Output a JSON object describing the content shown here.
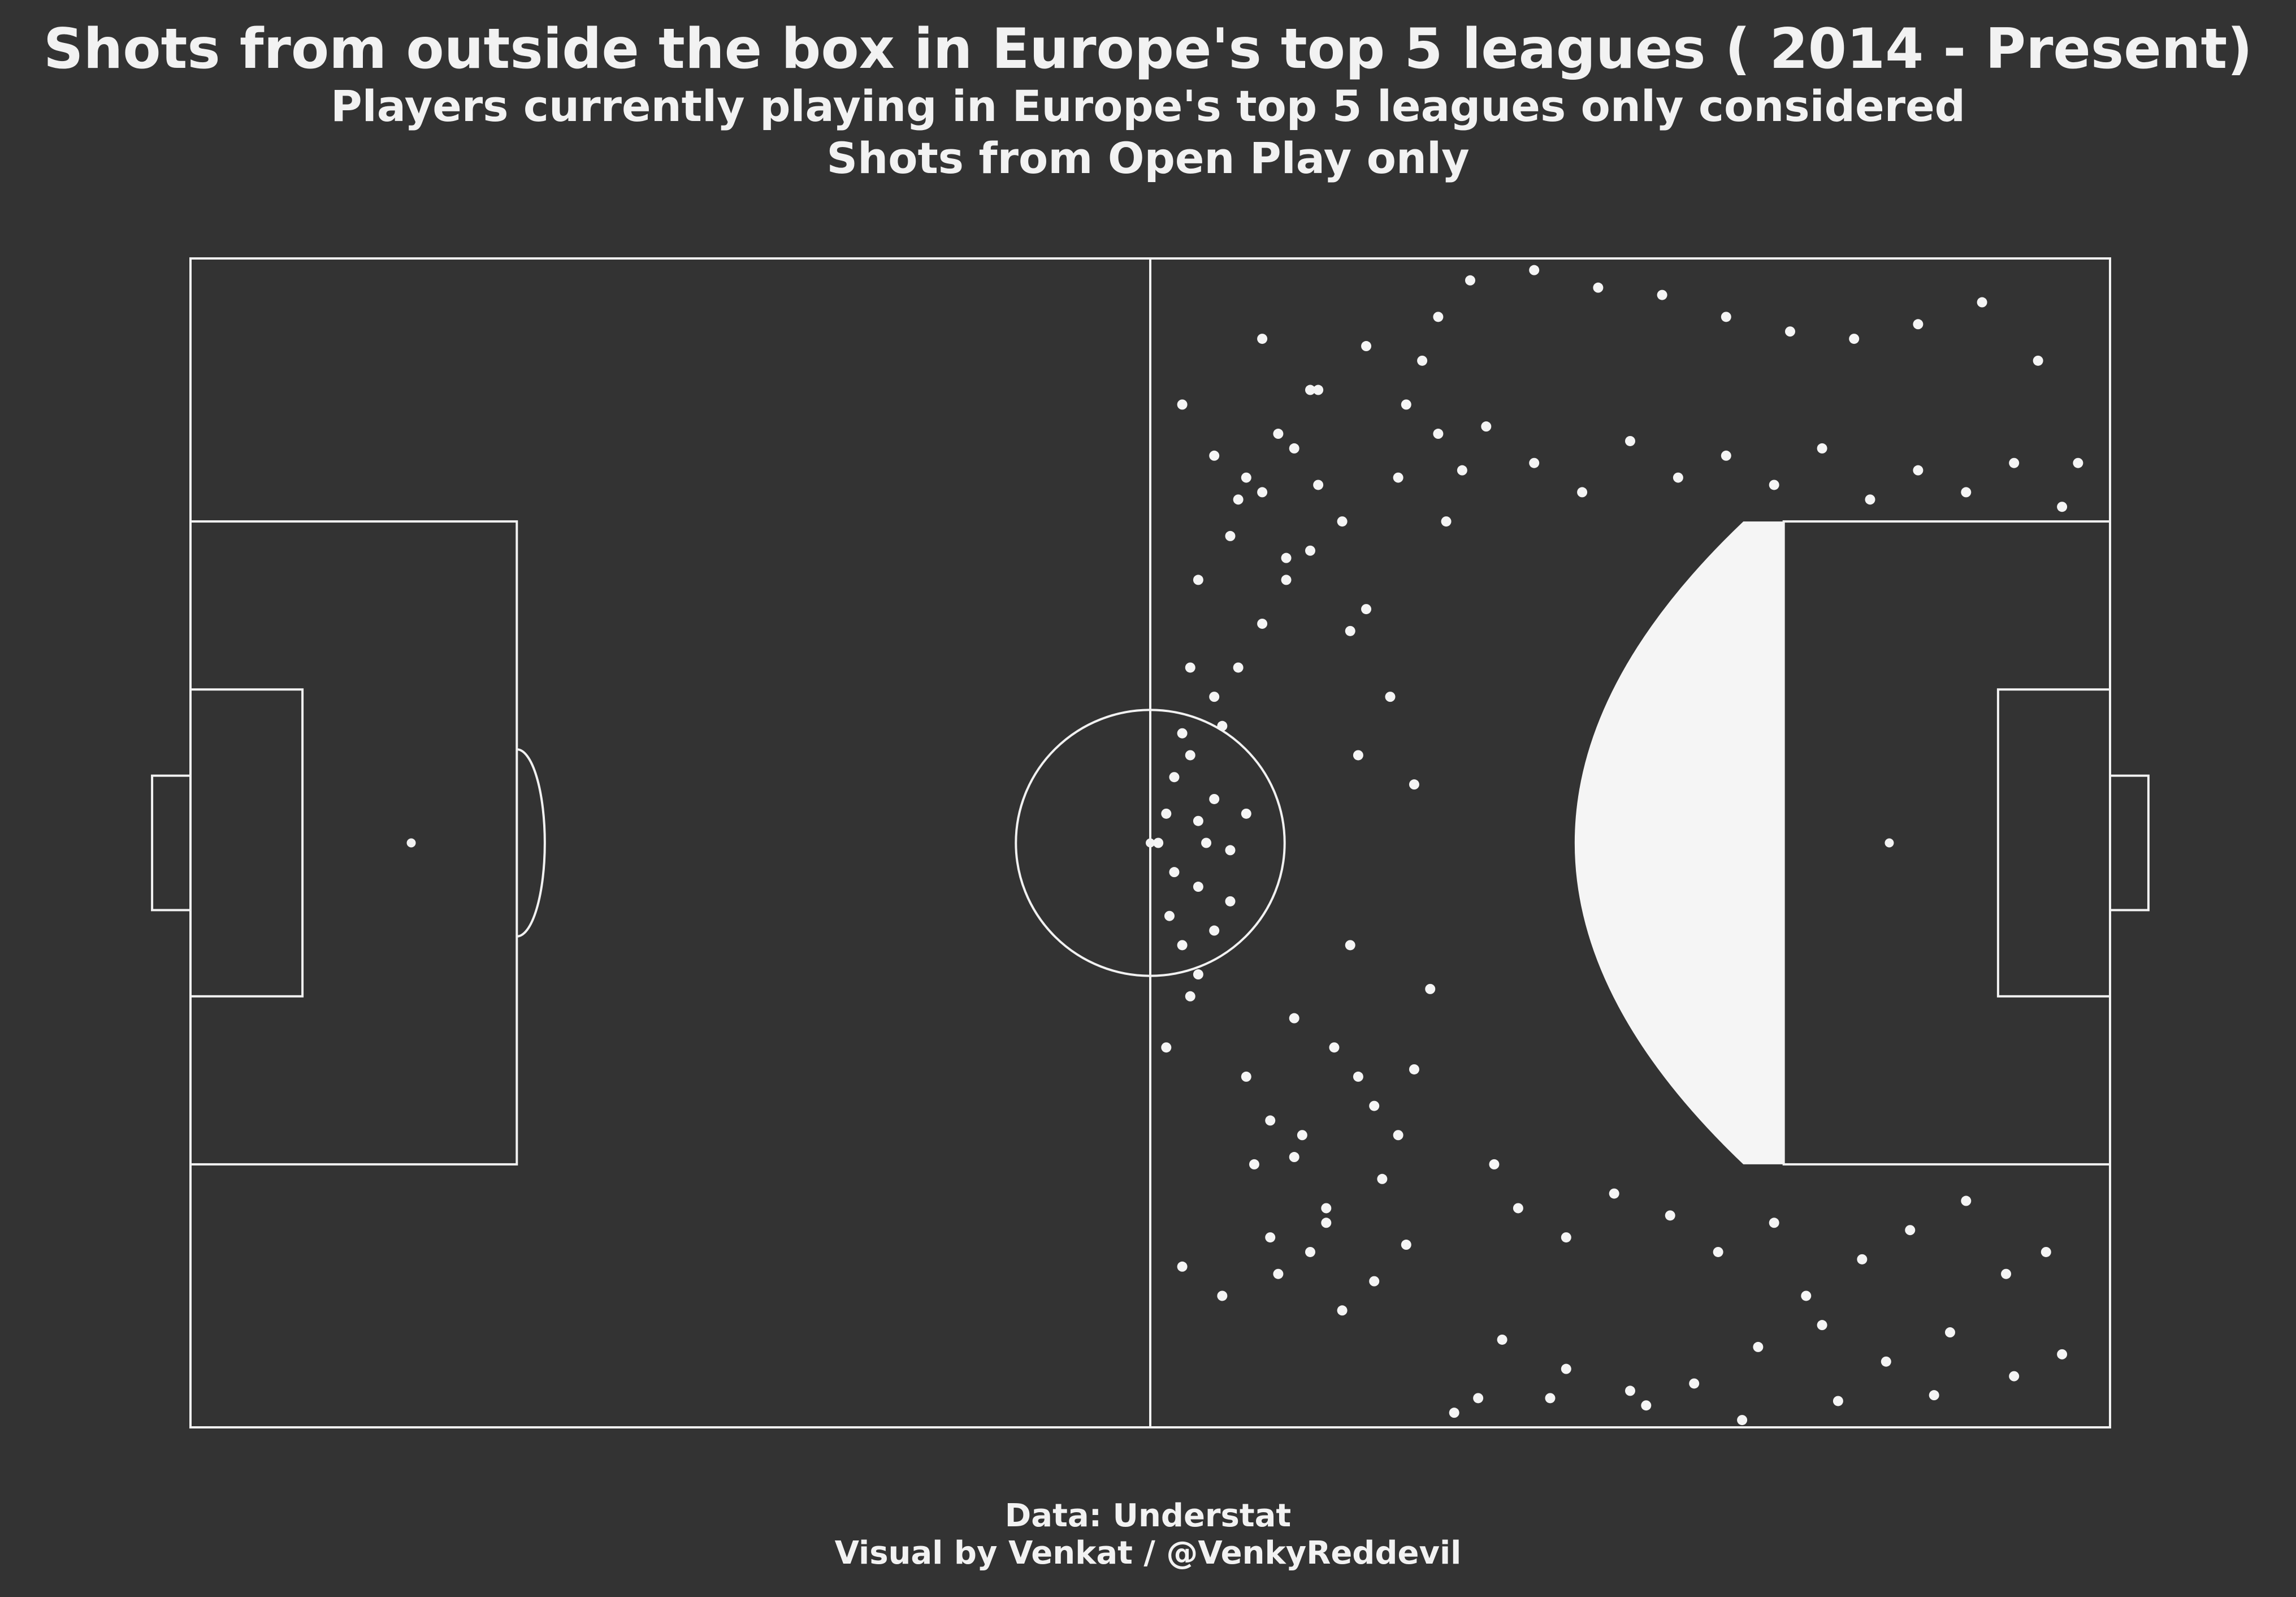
{
  "title": "Shots from outside the box in Europe's top 5 leagues ( 2014 - Present)",
  "subtitle_lines": [
    "Players currently playing in Europe's top 5 leagues only considered",
    "Shots from Open Play only"
  ],
  "footer_lines": [
    "Data: Understat",
    "Visual by Venkat / @VenkyReddevil"
  ],
  "colors": {
    "background": "#333333",
    "pitch_lines": "#f2f2f2",
    "shots": "#f5f5f5"
  },
  "chart_data": {
    "type": "scatter",
    "title": "Shots from outside the box in Europe's top 5 leagues ( 2014 - Present)",
    "pitch": {
      "length": 120,
      "width": 80,
      "units": "yards"
    },
    "xlim": [
      0,
      120
    ],
    "ylim": [
      0,
      80
    ],
    "grid": false,
    "legend": "none",
    "series": [
      {
        "dense_region": {
          "x": [
            79,
            99.6
          ],
          "y": [
            18,
            62
          ]
        },
        "x": [
          61.2,
          61.5,
          62.0,
          63.5,
          64.0,
          62.5,
          63.0,
          65.0,
          64.5,
          66.0,
          65.5,
          67.0,
          68.5,
          70.0,
          72.0,
          69.0,
          71.5,
          73.0,
          74.0,
          75.5,
          66.0,
          68.0,
          70.5,
          73.5,
          62.0,
          64.5,
          67.5,
          71.0,
          74.5,
          76.0,
          77.0,
          78.0,
          80.0,
          84.0,
          88.0,
          92.0,
          96.0,
          100.0,
          104.0,
          108.0,
          112.0,
          115.5,
          118.0,
          82.0,
          86.0,
          90.0,
          94.0,
          98.0,
          102.0,
          106.0,
          110.0,
          114.0,
          117.0,
          79.0,
          85.0,
          91.0,
          97.0,
          103.0,
          109.0,
          76.5,
          75.0,
          73.5,
          72.5,
          77.5,
          78.5,
          66.5,
          69.5,
          71.0,
          63.0,
          65.0,
          67.0,
          69.0,
          62.5,
          64.0,
          60.5,
          63.0,
          61.5,
          62.0,
          64.0,
          63.0,
          65.0,
          61.0,
          62.5,
          66.0,
          67.5,
          69.0,
          70.5,
          68.0,
          70.0,
          72.0,
          74.0,
          76.0,
          80.5,
          81.5,
          83.0,
          86.0,
          89.0,
          92.5,
          95.5,
          99.0,
          101.0,
          104.5,
          107.5,
          111.0,
          113.5,
          116.0,
          78.0,
          75.5,
          73.0,
          70.0,
          67.0,
          64.0,
          62.0,
          61.0,
          65.5,
          68.5,
          72.5,
          76.5,
          79.5,
          81.0,
          84.0,
          87.0,
          90.0,
          93.0,
          96.0,
          99.0,
          102.0,
          105.0,
          108.0,
          111.0,
          114.0,
          117.0
        ],
        "y": [
          35.0,
          38.0,
          33.0,
          40.0,
          43.0,
          46.0,
          31.0,
          36.0,
          48.0,
          42.0,
          52.0,
          55.0,
          58.0,
          60.0,
          62.0,
          28.0,
          26.0,
          24.0,
          22.0,
          20.0,
          65.0,
          68.0,
          71.0,
          74.0,
          11.0,
          9.0,
          13.0,
          15.0,
          17.0,
          70.0,
          73.0,
          76.0,
          78.5,
          79.2,
          78.0,
          77.5,
          76.0,
          75.0,
          74.5,
          75.5,
          77.0,
          73.0,
          66.0,
          6.0,
          4.0,
          2.5,
          3.0,
          5.5,
          7.0,
          4.5,
          6.5,
          3.5,
          5.0,
          1.0,
          2.0,
          1.5,
          0.5,
          1.8,
          2.2,
          44.0,
          50.0,
          56.0,
          33.0,
          30.0,
          62.0,
          18.0,
          20.0,
          14.0,
          58.0,
          61.0,
          64.0,
          67.0,
          52.0,
          50.0,
          40.0,
          37.0,
          44.5,
          47.5,
          34.0,
          41.5,
          39.5,
          42.0,
          29.5,
          24.0,
          21.0,
          18.5,
          64.5,
          10.5,
          12.0,
          8.0,
          10.0,
          12.5,
          2.0,
          18.0,
          15.0,
          13.0,
          16.0,
          14.5,
          12.0,
          14.0,
          9.0,
          11.5,
          13.5,
          15.5,
          10.5,
          12.0,
          68.0,
          65.0,
          46.0,
          71.0,
          74.5,
          66.5,
          70.0,
          26.0,
          63.5,
          59.5,
          54.5,
          24.5,
          65.5,
          68.5,
          66.0,
          64.0,
          67.5,
          65.0,
          66.5,
          64.5,
          67.0,
          63.5,
          65.5,
          64.0,
          66.0,
          63.0
        ]
      }
    ]
  }
}
